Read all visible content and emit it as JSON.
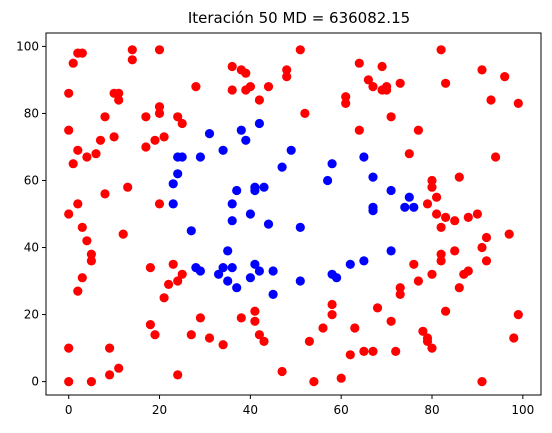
{
  "chart_data": {
    "type": "scatter",
    "title": "Iteración 50 MD = 636082.15",
    "xlabel": "",
    "ylabel": "",
    "xlim": [
      -5,
      104
    ],
    "ylim": [
      -4,
      104
    ],
    "x_ticks": [
      "0",
      "20",
      "40",
      "60",
      "80",
      "100"
    ],
    "y_ticks": [
      "0",
      "20",
      "40",
      "60",
      "80",
      "100"
    ],
    "grid": false,
    "colors": {
      "red": "#ff0000",
      "blue": "#0000ff"
    },
    "series": [
      {
        "color": "red",
        "points": [
          [
            0,
            86
          ],
          [
            0,
            75
          ],
          [
            0,
            50
          ],
          [
            0,
            10
          ],
          [
            0,
            0
          ],
          [
            1,
            95
          ],
          [
            1,
            65
          ],
          [
            2,
            98
          ],
          [
            2,
            69
          ],
          [
            2,
            53
          ],
          [
            2,
            27
          ],
          [
            3,
            98
          ],
          [
            3,
            46
          ],
          [
            3,
            31
          ],
          [
            4,
            67
          ],
          [
            4,
            42
          ],
          [
            5,
            38
          ],
          [
            5,
            36
          ],
          [
            5,
            0
          ],
          [
            6,
            68
          ],
          [
            7,
            72
          ],
          [
            8,
            79
          ],
          [
            8,
            56
          ],
          [
            9,
            10
          ],
          [
            9,
            2
          ],
          [
            10,
            73
          ],
          [
            10,
            86
          ],
          [
            11,
            86
          ],
          [
            11,
            84
          ],
          [
            11,
            4
          ],
          [
            12,
            44
          ],
          [
            13,
            58
          ],
          [
            14,
            99
          ],
          [
            14,
            96
          ],
          [
            17,
            79
          ],
          [
            17,
            70
          ],
          [
            18,
            34
          ],
          [
            18,
            17
          ],
          [
            19,
            72
          ],
          [
            19,
            14
          ],
          [
            20,
            99
          ],
          [
            20,
            82
          ],
          [
            20,
            80
          ],
          [
            20,
            53
          ],
          [
            21,
            73
          ],
          [
            21,
            25
          ],
          [
            22,
            29
          ],
          [
            23,
            35
          ],
          [
            24,
            79
          ],
          [
            24,
            30
          ],
          [
            24,
            2
          ],
          [
            25,
            77
          ],
          [
            25,
            32
          ],
          [
            27,
            14
          ],
          [
            28,
            88
          ],
          [
            29,
            19
          ],
          [
            31,
            13
          ],
          [
            34,
            11
          ],
          [
            36,
            94
          ],
          [
            36,
            87
          ],
          [
            38,
            19
          ],
          [
            38,
            93
          ],
          [
            39,
            87
          ],
          [
            39,
            92
          ],
          [
            40,
            88
          ],
          [
            41,
            18
          ],
          [
            41,
            21
          ],
          [
            42,
            84
          ],
          [
            42,
            14
          ],
          [
            43,
            12
          ],
          [
            44,
            88
          ],
          [
            47,
            3
          ],
          [
            48,
            93
          ],
          [
            48,
            91
          ],
          [
            51,
            99
          ],
          [
            52,
            80
          ],
          [
            53,
            12
          ],
          [
            54,
            0
          ],
          [
            56,
            16
          ],
          [
            58,
            23
          ],
          [
            58,
            20
          ],
          [
            60,
            1
          ],
          [
            61,
            85
          ],
          [
            61,
            83
          ],
          [
            62,
            8
          ],
          [
            63,
            16
          ],
          [
            64,
            95
          ],
          [
            64,
            75
          ],
          [
            65,
            9
          ],
          [
            66,
            90
          ],
          [
            67,
            88
          ],
          [
            67,
            9
          ],
          [
            68,
            22
          ],
          [
            69,
            94
          ],
          [
            69,
            87
          ],
          [
            70,
            88
          ],
          [
            70,
            87
          ],
          [
            71,
            79
          ],
          [
            71,
            18
          ],
          [
            72,
            9
          ],
          [
            73,
            89
          ],
          [
            73,
            28
          ],
          [
            73,
            26
          ],
          [
            75,
            68
          ],
          [
            76,
            35
          ],
          [
            77,
            30
          ],
          [
            77,
            75
          ],
          [
            78,
            15
          ],
          [
            79,
            53
          ],
          [
            79,
            13
          ],
          [
            79,
            12
          ],
          [
            80,
            60
          ],
          [
            80,
            58
          ],
          [
            80,
            32
          ],
          [
            80,
            10
          ],
          [
            81,
            50
          ],
          [
            81,
            55
          ],
          [
            82,
            46
          ],
          [
            82,
            38
          ],
          [
            82,
            36
          ],
          [
            82,
            99
          ],
          [
            83,
            21
          ],
          [
            83,
            49
          ],
          [
            83,
            89
          ],
          [
            85,
            48
          ],
          [
            85,
            39
          ],
          [
            86,
            61
          ],
          [
            86,
            28
          ],
          [
            87,
            32
          ],
          [
            88,
            49
          ],
          [
            88,
            33
          ],
          [
            90,
            50
          ],
          [
            91,
            93
          ],
          [
            91,
            40
          ],
          [
            91,
            0
          ],
          [
            92,
            43
          ],
          [
            92,
            36
          ],
          [
            93,
            84
          ],
          [
            94,
            67
          ],
          [
            96,
            91
          ],
          [
            97,
            44
          ],
          [
            98,
            13
          ],
          [
            99,
            83
          ],
          [
            99,
            20
          ]
        ]
      },
      {
        "color": "blue",
        "points": [
          [
            23,
            59
          ],
          [
            23,
            53
          ],
          [
            24,
            62
          ],
          [
            24,
            67
          ],
          [
            25,
            67
          ],
          [
            27,
            45
          ],
          [
            28,
            34
          ],
          [
            29,
            67
          ],
          [
            29,
            33
          ],
          [
            31,
            74
          ],
          [
            33,
            32
          ],
          [
            34,
            69
          ],
          [
            34,
            34
          ],
          [
            35,
            39
          ],
          [
            35,
            30
          ],
          [
            36,
            53
          ],
          [
            36,
            48
          ],
          [
            36,
            34
          ],
          [
            37,
            28
          ],
          [
            37,
            57
          ],
          [
            38,
            75
          ],
          [
            39,
            72
          ],
          [
            40,
            50
          ],
          [
            40,
            31
          ],
          [
            41,
            58
          ],
          [
            41,
            57
          ],
          [
            41,
            35
          ],
          [
            42,
            77
          ],
          [
            42,
            33
          ],
          [
            43,
            58
          ],
          [
            44,
            47
          ],
          [
            45,
            26
          ],
          [
            45,
            33
          ],
          [
            47,
            64
          ],
          [
            49,
            69
          ],
          [
            51,
            46
          ],
          [
            51,
            30
          ],
          [
            57,
            60
          ],
          [
            58,
            32
          ],
          [
            58,
            65
          ],
          [
            59,
            31
          ],
          [
            62,
            35
          ],
          [
            65,
            36
          ],
          [
            65,
            67
          ],
          [
            67,
            52
          ],
          [
            67,
            51
          ],
          [
            67,
            61
          ],
          [
            71,
            39
          ],
          [
            71,
            57
          ],
          [
            74,
            52
          ],
          [
            75,
            55
          ],
          [
            76,
            52
          ]
        ]
      }
    ]
  }
}
